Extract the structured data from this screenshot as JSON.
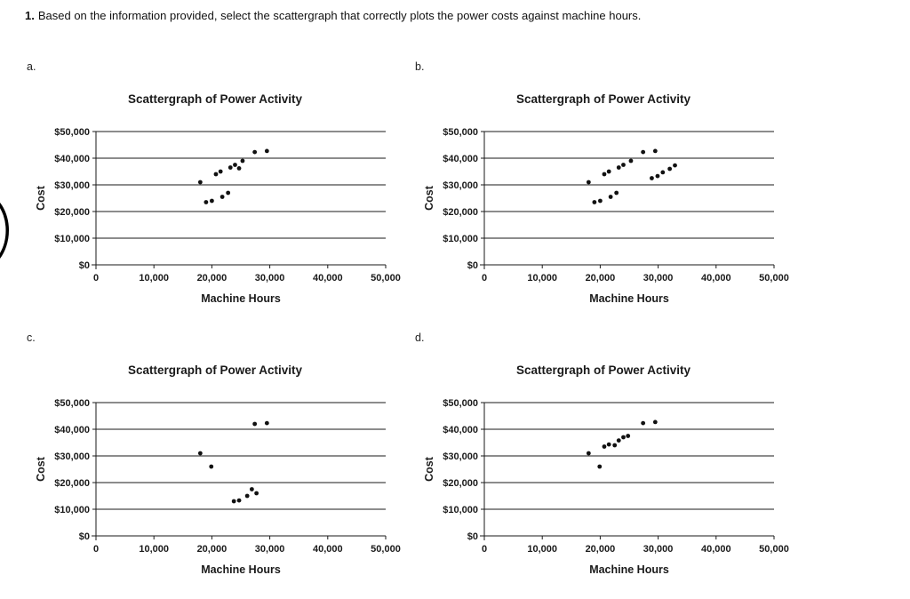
{
  "question": {
    "number": "1.",
    "text": "Based on the information provided, select the scattergraph that correctly plots the power costs against machine hours."
  },
  "chart_data": [
    {
      "option": "a.",
      "type": "scatter",
      "title": "Scattergraph of Power Activity",
      "xlabel": "Machine Hours",
      "ylabel": "Cost",
      "xlim": [
        0,
        50000
      ],
      "ylim": [
        0,
        50000
      ],
      "grid": "horizontal",
      "legend": "none",
      "x_ticks": [
        "0",
        "10,000",
        "20,000",
        "30,000",
        "40,000",
        "50,000"
      ],
      "y_ticks": [
        "$0",
        "$10,000",
        "$20,000",
        "$30,000",
        "$40,000",
        "$50,000"
      ],
      "points": [
        [
          18000,
          31000
        ],
        [
          19000,
          23500
        ],
        [
          20000,
          24000
        ],
        [
          20700,
          34000
        ],
        [
          21500,
          35000
        ],
        [
          21800,
          25500
        ],
        [
          22800,
          27000
        ],
        [
          23200,
          36500
        ],
        [
          24000,
          37500
        ],
        [
          24700,
          36200
        ],
        [
          25300,
          39000
        ],
        [
          27400,
          42300
        ],
        [
          29500,
          42700
        ]
      ]
    },
    {
      "option": "b.",
      "type": "scatter",
      "title": "Scattergraph of Power Activity",
      "xlabel": "Machine Hours",
      "ylabel": "Cost",
      "xlim": [
        0,
        50000
      ],
      "ylim": [
        0,
        50000
      ],
      "grid": "horizontal",
      "legend": "none",
      "x_ticks": [
        "0",
        "10,000",
        "20,000",
        "30,000",
        "40,000",
        "50,000"
      ],
      "y_ticks": [
        "$0",
        "$10,000",
        "$20,000",
        "$30,000",
        "$40,000",
        "$50,000"
      ],
      "points": [
        [
          18000,
          31000
        ],
        [
          19000,
          23500
        ],
        [
          20000,
          24000
        ],
        [
          20700,
          34000
        ],
        [
          21500,
          35000
        ],
        [
          21800,
          25500
        ],
        [
          22800,
          27000
        ],
        [
          23200,
          36500
        ],
        [
          24000,
          37500
        ],
        [
          25300,
          39000
        ],
        [
          27400,
          42300
        ],
        [
          29500,
          42700
        ],
        [
          28900,
          32500
        ],
        [
          29900,
          33300
        ],
        [
          30800,
          34700
        ],
        [
          32000,
          36000
        ],
        [
          32900,
          37300
        ]
      ]
    },
    {
      "option": "c.",
      "type": "scatter",
      "title": "Scattergraph of Power Activity",
      "xlabel": "Machine Hours",
      "ylabel": "Cost",
      "xlim": [
        0,
        50000
      ],
      "ylim": [
        0,
        50000
      ],
      "grid": "horizontal",
      "legend": "none",
      "x_ticks": [
        "0",
        "10,000",
        "20,000",
        "30,000",
        "40,000",
        "50,000"
      ],
      "y_ticks": [
        "$0",
        "$10,000",
        "$20,000",
        "$30,000",
        "$40,000",
        "$50,000"
      ],
      "points": [
        [
          18000,
          31000
        ],
        [
          19900,
          26000
        ],
        [
          23800,
          13000
        ],
        [
          24700,
          13300
        ],
        [
          26100,
          15000
        ],
        [
          26900,
          17500
        ],
        [
          27700,
          16000
        ],
        [
          27400,
          42000
        ],
        [
          29500,
          42300
        ]
      ]
    },
    {
      "option": "d.",
      "type": "scatter",
      "title": "Scattergraph of Power Activity",
      "xlabel": "Machine Hours",
      "ylabel": "Cost",
      "xlim": [
        0,
        50000
      ],
      "ylim": [
        0,
        50000
      ],
      "grid": "horizontal",
      "legend": "none",
      "x_ticks": [
        "0",
        "10,000",
        "20,000",
        "30,000",
        "40,000",
        "50,000"
      ],
      "y_ticks": [
        "$0",
        "$10,000",
        "$20,000",
        "$30,000",
        "$40,000",
        "$50,000"
      ],
      "points": [
        [
          18000,
          31000
        ],
        [
          19900,
          26000
        ],
        [
          20700,
          33500
        ],
        [
          21500,
          34300
        ],
        [
          22500,
          34000
        ],
        [
          23200,
          35800
        ],
        [
          24000,
          37000
        ],
        [
          24800,
          37500
        ],
        [
          27400,
          42300
        ],
        [
          29500,
          42700
        ]
      ]
    }
  ]
}
